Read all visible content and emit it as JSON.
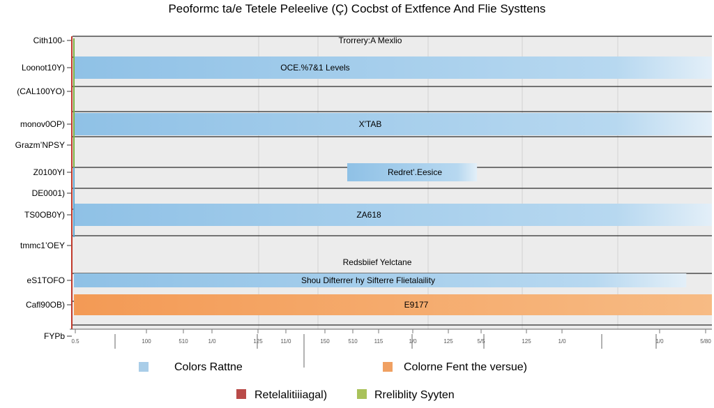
{
  "chart_data": {
    "type": "bar",
    "orientation": "horizontal",
    "title": "Peoformc ta/e Tetele Peleelive (Ç) Cocbst of Extfence And Flie Systtens",
    "xlim": [
      0,
      1000
    ],
    "grid": true,
    "categories": [
      "Cith100-",
      "Loonot10Y)",
      "(CAL100YO)",
      "monov0OP)",
      "Grazm’NPSY",
      "Z0100YI",
      "DE0001)",
      "TS0OB0Y)",
      "tmmc1’OEY",
      "eS1TOFO",
      "Cafl90OB)",
      "FYPb"
    ],
    "x_tick_labels": [
      "0.5",
      "100",
      "510",
      "1/0",
      "125",
      "11/0",
      "150",
      "510",
      "115",
      "1/0",
      "125",
      "5/5",
      "125",
      "1/0",
      "1/0",
      "5/80"
    ],
    "series": [
      {
        "color": "#a9cde8",
        "values": [
          0,
          1000,
          0,
          1000,
          0,
          290,
          0,
          1000,
          0,
          960,
          0,
          0
        ],
        "labels": [
          "Trorrery:A Mexlio",
          "OCE.%7&1 Levels",
          "",
          "X'TAB",
          "",
          "Redret’.Eesice",
          "",
          "ZA618",
          "Redsbiief Yelctane",
          "Shou Difterrer hy Sifterre Flietalaility",
          "",
          ""
        ]
      },
      {
        "color": "#f0a062",
        "values": [
          0,
          0,
          0,
          0,
          0,
          0,
          0,
          0,
          0,
          0,
          1000,
          0
        ],
        "labels": [
          "",
          "",
          "",
          "",
          "",
          "",
          "",
          "",
          "",
          "",
          "E9177",
          ""
        ]
      }
    ],
    "legend": {
      "placement": "bottom",
      "items": [
        {
          "label": "Colors  Rattne",
          "color": "#a9cde8"
        },
        {
          "label": "Colorne Fent the versue)",
          "color": "#f0a062"
        },
        {
          "label": "Retelalitiiiagal)",
          "color": "#b94a48"
        },
        {
          "label": "Rreliblity Syyten",
          "color": "#a9c25a"
        }
      ]
    }
  }
}
